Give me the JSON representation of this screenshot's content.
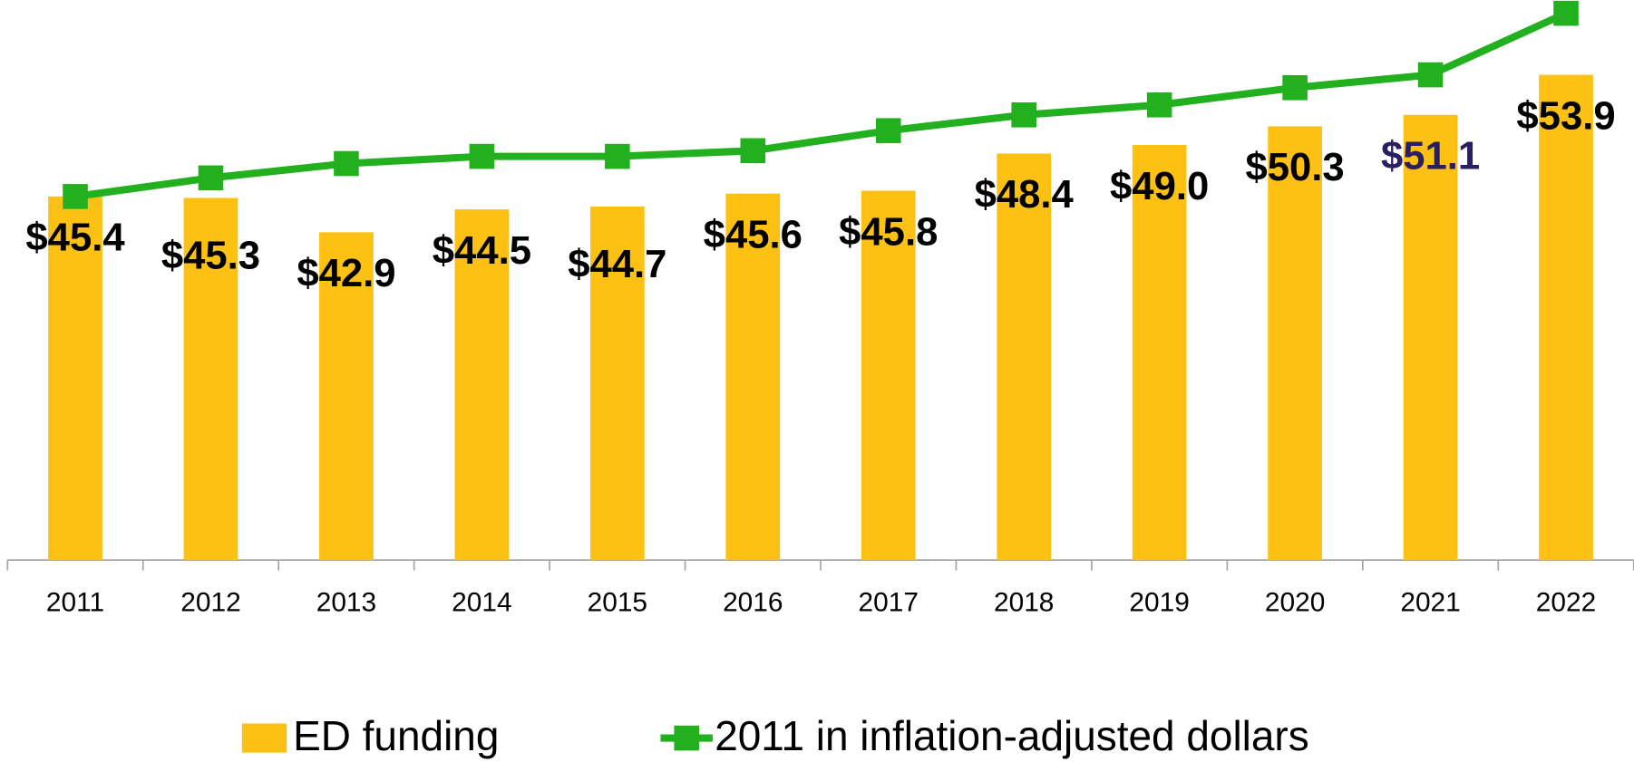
{
  "chart_data": {
    "type": "bar-line",
    "categories": [
      "2011",
      "2012",
      "2013",
      "2014",
      "2015",
      "2016",
      "2017",
      "2018",
      "2019",
      "2020",
      "2021",
      "2022"
    ],
    "series": [
      {
        "name": "ED funding",
        "type": "bar",
        "color": "#fdc114",
        "values": [
          45.4,
          45.3,
          42.9,
          44.5,
          44.7,
          45.6,
          45.8,
          48.4,
          49.0,
          50.3,
          51.1,
          53.9
        ],
        "value_labels": [
          "$45.4",
          "$45.3",
          "$42.9",
          "$44.5",
          "$44.7",
          "$45.6",
          "$45.8",
          "$48.4",
          "$49.0",
          "$50.3",
          "$51.1",
          "$53.9"
        ],
        "value_label_colors": [
          "#000000",
          "#000000",
          "#000000",
          "#000000",
          "#000000",
          "#000000",
          "#000000",
          "#000000",
          "#000000",
          "#000000",
          "#2a2060",
          "#000000"
        ]
      },
      {
        "name": "2011 in inflation-adjusted dollars",
        "type": "line",
        "color": "#22b01e",
        "values": [
          45.4,
          46.7,
          47.7,
          48.2,
          48.2,
          48.6,
          50.0,
          51.1,
          51.8,
          53.0,
          53.9,
          58.2
        ]
      }
    ],
    "ylim": [
      20,
      60
    ],
    "legend": "bottom"
  }
}
